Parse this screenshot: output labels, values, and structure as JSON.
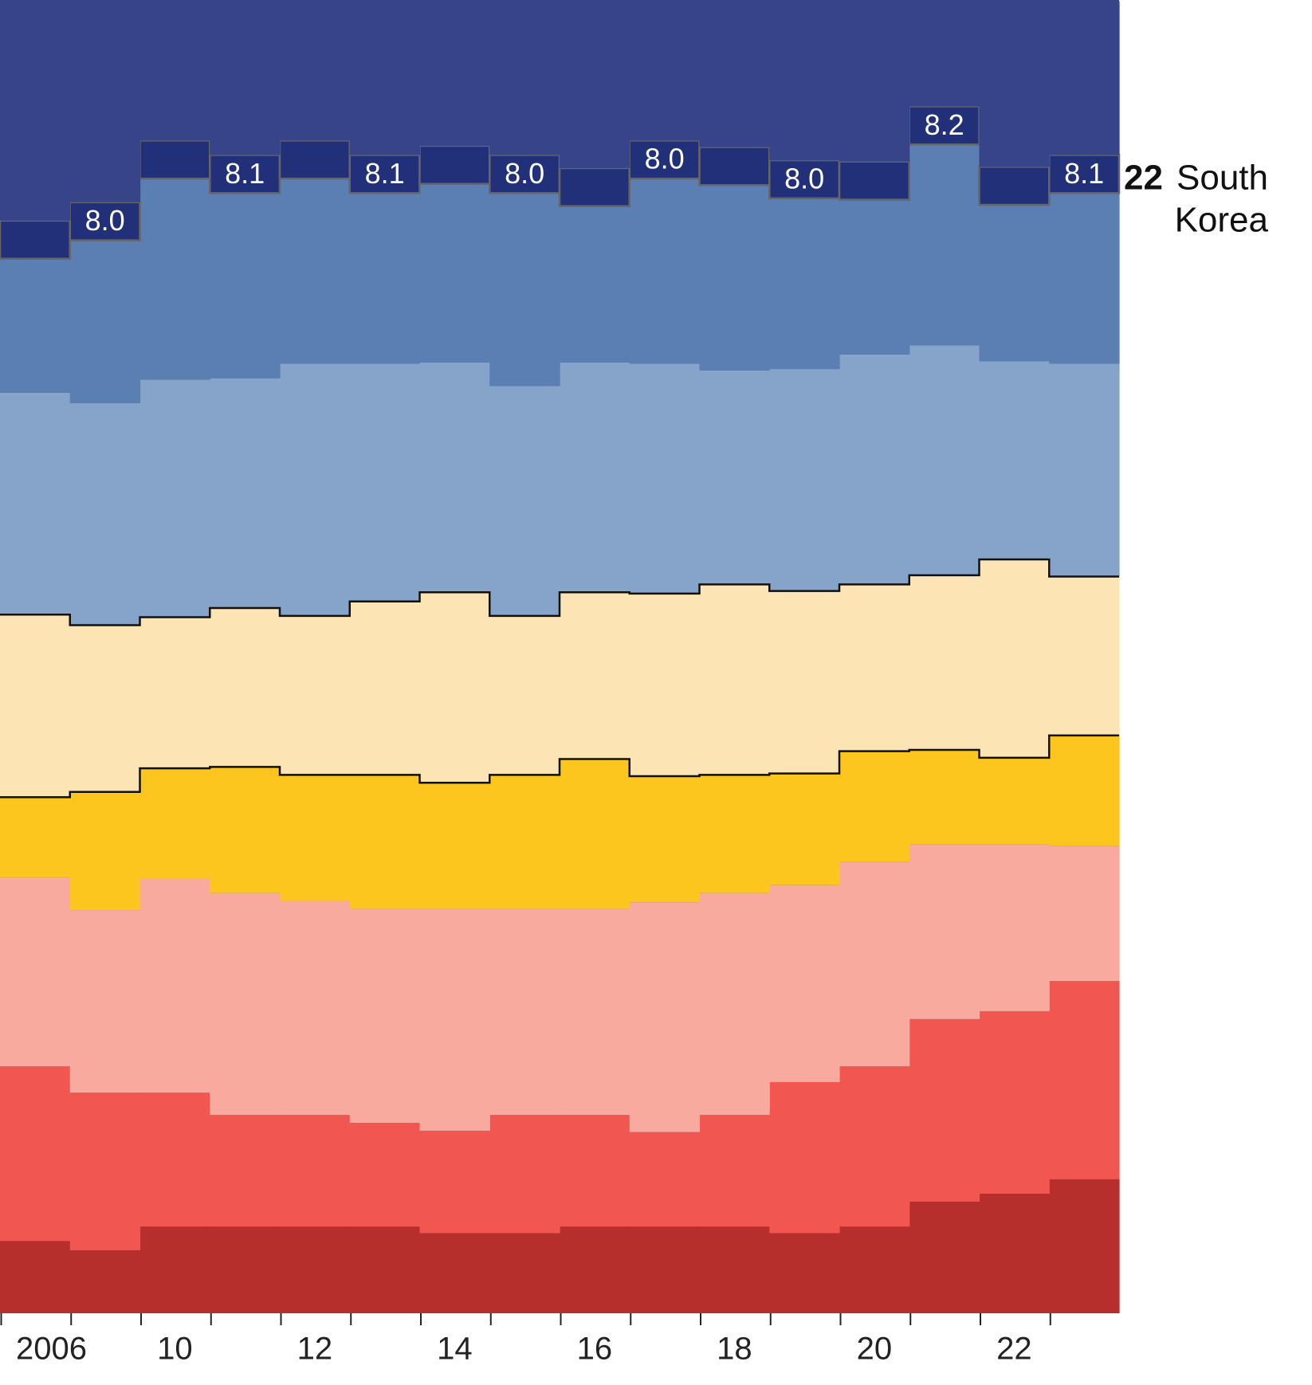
{
  "chart_data": {
    "type": "stacked-step-area",
    "categories": [
      "2006",
      null,
      "10",
      null,
      "12",
      null,
      "14",
      null,
      "16",
      null,
      "18",
      null,
      "20",
      null,
      "22",
      null
    ],
    "ylim": [
      0,
      100
    ],
    "background": "#37448a",
    "series": [
      {
        "color": "#b72f2c",
        "values": [
          5.5,
          4.8,
          6.6,
          6.6,
          6.6,
          6.6,
          6.1,
          6.1,
          6.6,
          6.6,
          6.6,
          6.1,
          6.6,
          8.5,
          9.1,
          10.2
        ]
      },
      {
        "color": "#f25651",
        "values": [
          13.3,
          12.0,
          10.2,
          8.5,
          8.5,
          7.9,
          7.8,
          9.0,
          8.5,
          7.2,
          8.5,
          11.5,
          12.2,
          13.9,
          13.9,
          15.1
        ]
      },
      {
        "color": "#f9aa9e",
        "values": [
          14.4,
          13.9,
          16.3,
          16.9,
          16.3,
          16.3,
          16.9,
          15.7,
          15.7,
          17.5,
          16.9,
          15.0,
          15.6,
          13.3,
          12.7,
          10.3
        ]
      },
      {
        "color": "#fdc61e",
        "outline": "#111111",
        "values": [
          6.1,
          9.0,
          8.4,
          9.6,
          9.6,
          10.2,
          9.6,
          10.2,
          11.4,
          9.6,
          9.0,
          8.5,
          8.4,
          7.2,
          6.6,
          8.4
        ]
      },
      {
        "color": "#fde4b4",
        "outline": "#111111",
        "values": [
          13.9,
          12.7,
          11.5,
          12.1,
          12.1,
          13.2,
          14.5,
          12.1,
          12.7,
          13.9,
          14.5,
          13.9,
          12.7,
          13.3,
          15.1,
          12.1
        ]
      },
      {
        "color": "#86a3c9",
        "values": [
          16.9,
          16.9,
          18.1,
          17.5,
          19.2,
          18.1,
          17.5,
          17.5,
          17.5,
          17.5,
          16.3,
          16.9,
          17.5,
          17.5,
          15.1,
          16.2
        ]
      },
      {
        "color": "#5b7fb2",
        "values": [
          10.2,
          12.4,
          15.3,
          14.1,
          14.1,
          13.0,
          13.6,
          14.7,
          11.9,
          14.1,
          14.1,
          13.0,
          11.8,
          15.3,
          11.9,
          13.0
        ]
      },
      {
        "color": "#22307a",
        "outline": "#666666",
        "values": [
          2.9,
          2.9,
          2.9,
          2.9,
          2.9,
          2.9,
          2.9,
          2.9,
          2.9,
          2.9,
          2.9,
          2.9,
          2.9,
          2.9,
          2.9,
          2.9
        ],
        "score_labels": [
          null,
          "8.0",
          null,
          "8.1",
          null,
          "8.1",
          null,
          "8.0",
          null,
          "8.0",
          null,
          "8.0",
          null,
          "8.2",
          null,
          "8.1"
        ]
      },
      {
        "color": "#37448a",
        "values": [
          16.9,
          15.3,
          10.6,
          11.7,
          10.6,
          11.7,
          11.1,
          11.7,
          12.8,
          10.6,
          11.1,
          12.3,
          12.3,
          8.2,
          12.8,
          11.7
        ]
      }
    ],
    "annotation_rank": "22",
    "annotation_lines": [
      "South",
      "Korea"
    ]
  }
}
